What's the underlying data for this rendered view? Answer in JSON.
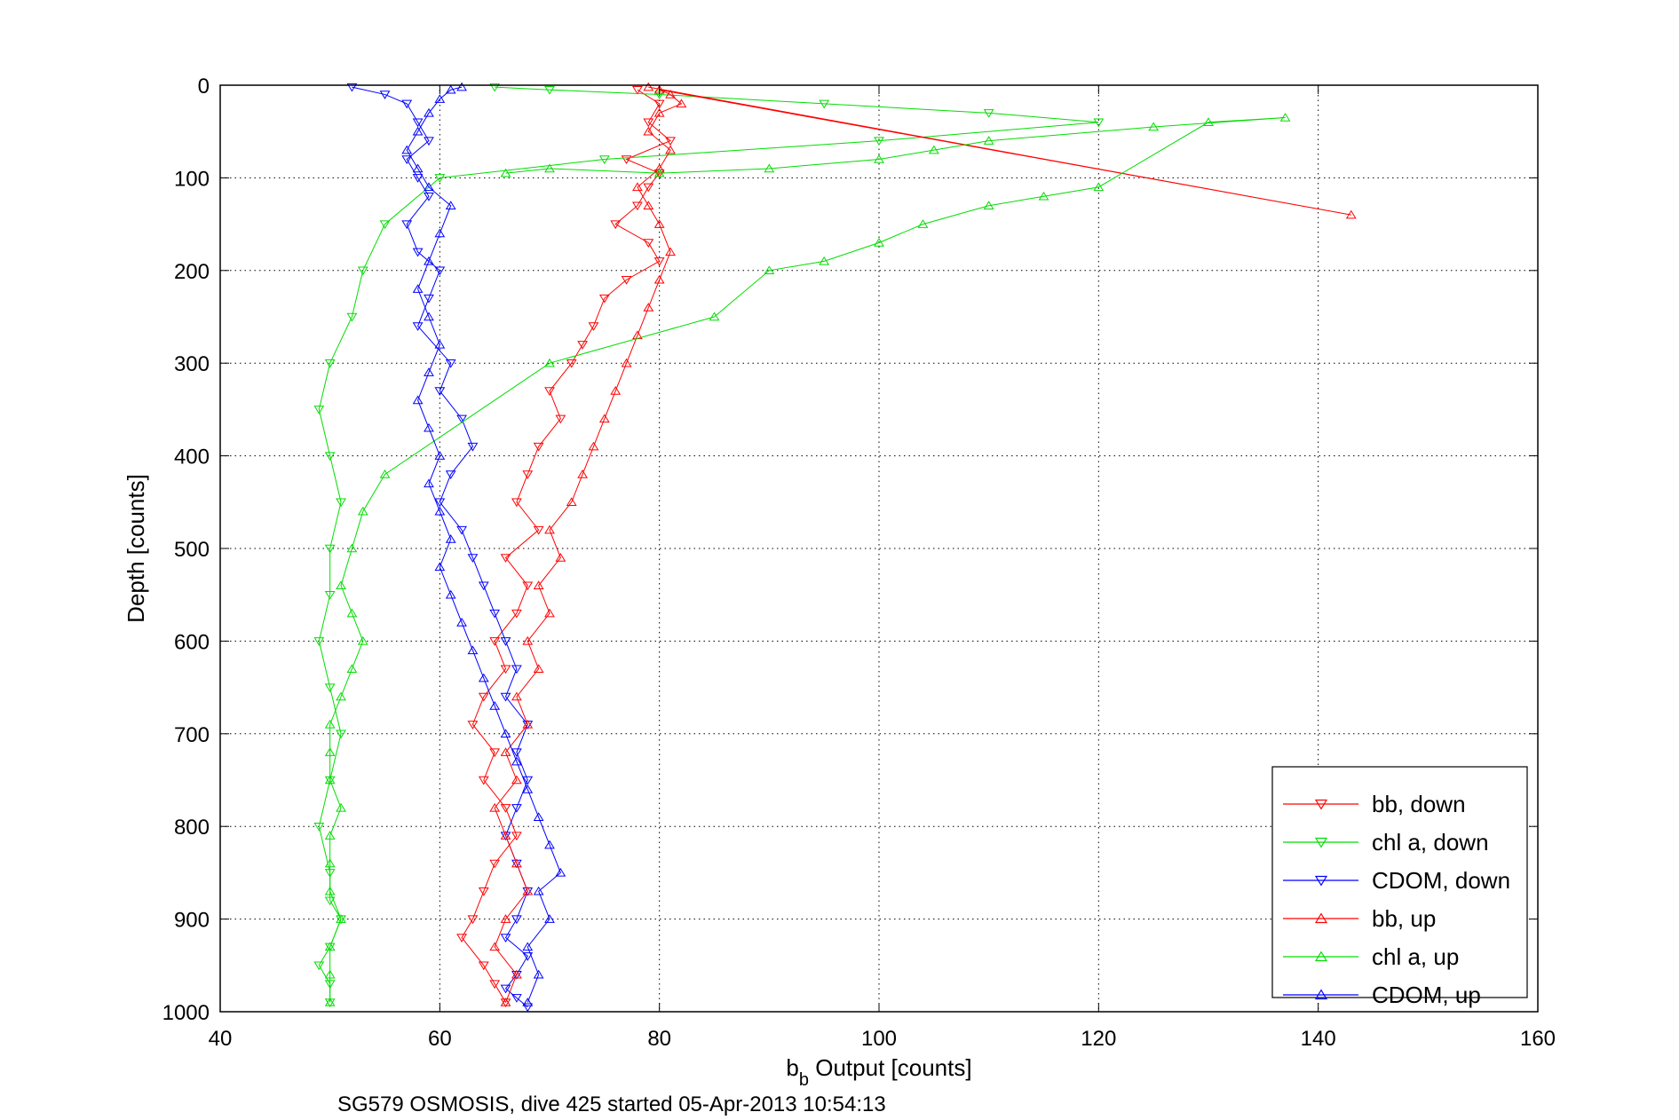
{
  "chart_data": {
    "type": "scatter",
    "title": "",
    "xlabel_main": "b",
    "xlabel_sub": "b",
    "xlabel_rest": " Output [counts]",
    "ylabel": "Depth [counts]",
    "caption": "SG579 OSMOSIS, dive 425 started 05-Apr-2013 10:54:13",
    "xlim": [
      40,
      160
    ],
    "ylim": [
      0,
      1000
    ],
    "y_reversed": true,
    "grid": true,
    "legend_position": "bottom-right",
    "x_ticks": [
      40,
      60,
      80,
      100,
      120,
      140,
      160
    ],
    "y_ticks": [
      0,
      100,
      200,
      300,
      400,
      500,
      600,
      700,
      800,
      900,
      1000
    ],
    "series": [
      {
        "name": "bb, down",
        "color": "#ff0000",
        "marker": "triangle-down",
        "x": [
          78,
          80,
          79,
          81,
          77,
          80,
          79,
          78,
          76,
          79,
          80,
          77,
          75,
          74,
          73,
          72,
          70,
          71,
          69,
          68,
          67,
          69,
          66,
          68,
          67,
          65,
          66,
          64,
          63,
          65,
          64,
          66,
          67,
          65,
          64,
          63,
          62,
          64,
          65,
          66
        ],
        "y": [
          5,
          20,
          40,
          60,
          80,
          95,
          110,
          130,
          150,
          170,
          190,
          210,
          230,
          260,
          280,
          300,
          330,
          360,
          390,
          420,
          450,
          480,
          510,
          540,
          570,
          600,
          630,
          660,
          690,
          720,
          750,
          780,
          810,
          840,
          870,
          900,
          920,
          950,
          970,
          990
        ]
      },
      {
        "name": "chl a, down",
        "color": "#00dd00",
        "marker": "triangle-down",
        "x": [
          65,
          70,
          80,
          95,
          110,
          120,
          100,
          75,
          60,
          55,
          53,
          52,
          50,
          49,
          50,
          51,
          50,
          50,
          49,
          50,
          51,
          50,
          49,
          50,
          50,
          51,
          50,
          49,
          50,
          50
        ],
        "y": [
          2,
          5,
          10,
          20,
          30,
          40,
          60,
          80,
          100,
          150,
          200,
          250,
          300,
          350,
          400,
          450,
          500,
          550,
          600,
          650,
          700,
          750,
          800,
          850,
          880,
          900,
          930,
          950,
          970,
          990
        ]
      },
      {
        "name": "CDOM, down",
        "color": "#0000ff",
        "marker": "triangle-down",
        "x": [
          52,
          55,
          57,
          58,
          59,
          57,
          58,
          59,
          57,
          58,
          60,
          59,
          58,
          61,
          60,
          62,
          63,
          61,
          60,
          62,
          63,
          64,
          65,
          66,
          67,
          66,
          68,
          67,
          68,
          67,
          66,
          67,
          68,
          67,
          66,
          68,
          67,
          66,
          67,
          68
        ],
        "y": [
          2,
          10,
          20,
          40,
          60,
          80,
          100,
          120,
          150,
          180,
          200,
          230,
          260,
          300,
          330,
          360,
          390,
          420,
          450,
          480,
          510,
          540,
          570,
          600,
          630,
          660,
          690,
          720,
          750,
          780,
          810,
          840,
          870,
          900,
          920,
          940,
          960,
          975,
          985,
          995
        ]
      },
      {
        "name": "bb, up",
        "color": "#ff0000",
        "marker": "triangle-up",
        "x": [
          66,
          67,
          65,
          66,
          68,
          67,
          66,
          65,
          67,
          66,
          68,
          67,
          69,
          68,
          70,
          69,
          71,
          70,
          72,
          73,
          74,
          75,
          76,
          77,
          78,
          79,
          80,
          81,
          80,
          79,
          78,
          80,
          81,
          79,
          80,
          82,
          81,
          80,
          143,
          79
        ],
        "y": [
          990,
          960,
          930,
          900,
          870,
          840,
          810,
          780,
          750,
          720,
          690,
          660,
          630,
          600,
          570,
          540,
          510,
          480,
          450,
          420,
          390,
          360,
          330,
          300,
          270,
          240,
          210,
          180,
          150,
          130,
          110,
          90,
          70,
          50,
          30,
          20,
          10,
          5,
          140,
          2
        ]
      },
      {
        "name": "chl a, up",
        "color": "#00dd00",
        "marker": "triangle-up",
        "x": [
          50,
          50,
          50,
          51,
          50,
          50,
          50,
          51,
          50,
          50,
          50,
          51,
          52,
          53,
          52,
          51,
          52,
          53,
          55,
          70,
          85,
          90,
          95,
          100,
          104,
          110,
          115,
          120,
          130,
          137,
          125,
          110,
          105,
          100,
          90,
          80,
          70,
          66
        ],
        "y": [
          990,
          960,
          930,
          900,
          870,
          840,
          810,
          780,
          750,
          720,
          690,
          660,
          630,
          600,
          570,
          540,
          500,
          460,
          420,
          300,
          250,
          200,
          190,
          170,
          150,
          130,
          120,
          110,
          40,
          35,
          45,
          60,
          70,
          80,
          90,
          95,
          90,
          95
        ]
      },
      {
        "name": "CDOM, up",
        "color": "#0000ff",
        "marker": "triangle-up",
        "x": [
          68,
          69,
          68,
          70,
          69,
          71,
          70,
          69,
          68,
          67,
          66,
          65,
          64,
          63,
          62,
          61,
          60,
          61,
          60,
          59,
          60,
          59,
          58,
          59,
          60,
          59,
          58,
          59,
          60,
          61,
          59,
          58,
          57,
          58,
          59,
          60,
          61,
          62
        ],
        "y": [
          990,
          960,
          930,
          900,
          870,
          850,
          820,
          790,
          760,
          730,
          700,
          670,
          640,
          610,
          580,
          550,
          520,
          490,
          460,
          430,
          400,
          370,
          340,
          310,
          280,
          250,
          220,
          190,
          160,
          130,
          110,
          90,
          70,
          50,
          30,
          15,
          5,
          2
        ]
      }
    ]
  }
}
